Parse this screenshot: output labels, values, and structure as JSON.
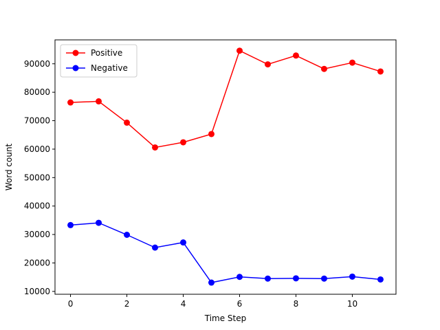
{
  "chart_data": {
    "type": "line",
    "title": "",
    "xlabel": "Time Step",
    "ylabel": "Word count",
    "xlim": [
      -0.55,
      11.55
    ],
    "ylim": [
      9000,
      98400
    ],
    "xticks": [
      0,
      2,
      4,
      6,
      8,
      10
    ],
    "yticks": [
      10000,
      20000,
      30000,
      40000,
      50000,
      60000,
      70000,
      80000,
      90000
    ],
    "grid": false,
    "legend_position": "top-left",
    "x": [
      0,
      1,
      2,
      3,
      4,
      5,
      6,
      7,
      8,
      9,
      10,
      11
    ],
    "series": [
      {
        "name": "Positive",
        "color": "#ff0000",
        "marker": "circle",
        "values": [
          76400,
          76800,
          69300,
          60600,
          62400,
          65300,
          94600,
          89800,
          92900,
          88200,
          90400,
          87300
        ]
      },
      {
        "name": "Negative",
        "color": "#0000ff",
        "marker": "circle",
        "values": [
          33300,
          34100,
          29900,
          25400,
          27200,
          13100,
          15100,
          14500,
          14600,
          14500,
          15200,
          14200
        ]
      }
    ]
  }
}
